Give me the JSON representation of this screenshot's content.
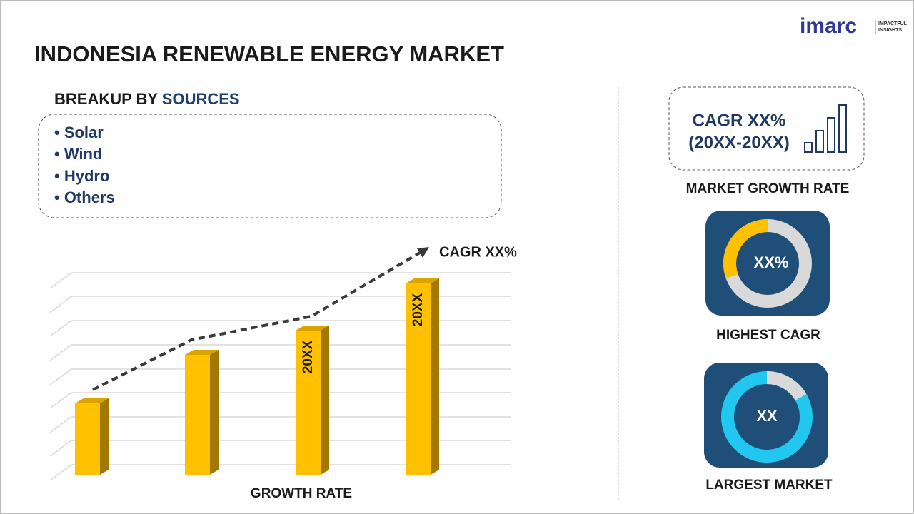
{
  "logo": {
    "name": "imarc",
    "tagline_1": "IMPACTFUL",
    "tagline_2": "INSIGHTS"
  },
  "title": "INDONESIA RENEWABLE ENERGY MARKET",
  "breakup": {
    "label": "BREAKUP BY",
    "highlight": "SOURCES",
    "items": [
      "• Solar",
      "• Wind",
      "• Hydro",
      "• Others"
    ]
  },
  "growth_chart": {
    "bar_labels": [
      "20XX",
      "20XX"
    ],
    "trend_label": "CAGR XX%",
    "caption": "GROWTH RATE"
  },
  "market_growth": {
    "line_1": "CAGR XX%",
    "line_2": "(20XX-20XX)",
    "caption": "MARKET GROWTH RATE"
  },
  "highest_cagr": {
    "value": "XX%",
    "caption": "HIGHEST CAGR"
  },
  "largest_market": {
    "value": "XX",
    "caption": "LARGEST MARKET"
  }
}
